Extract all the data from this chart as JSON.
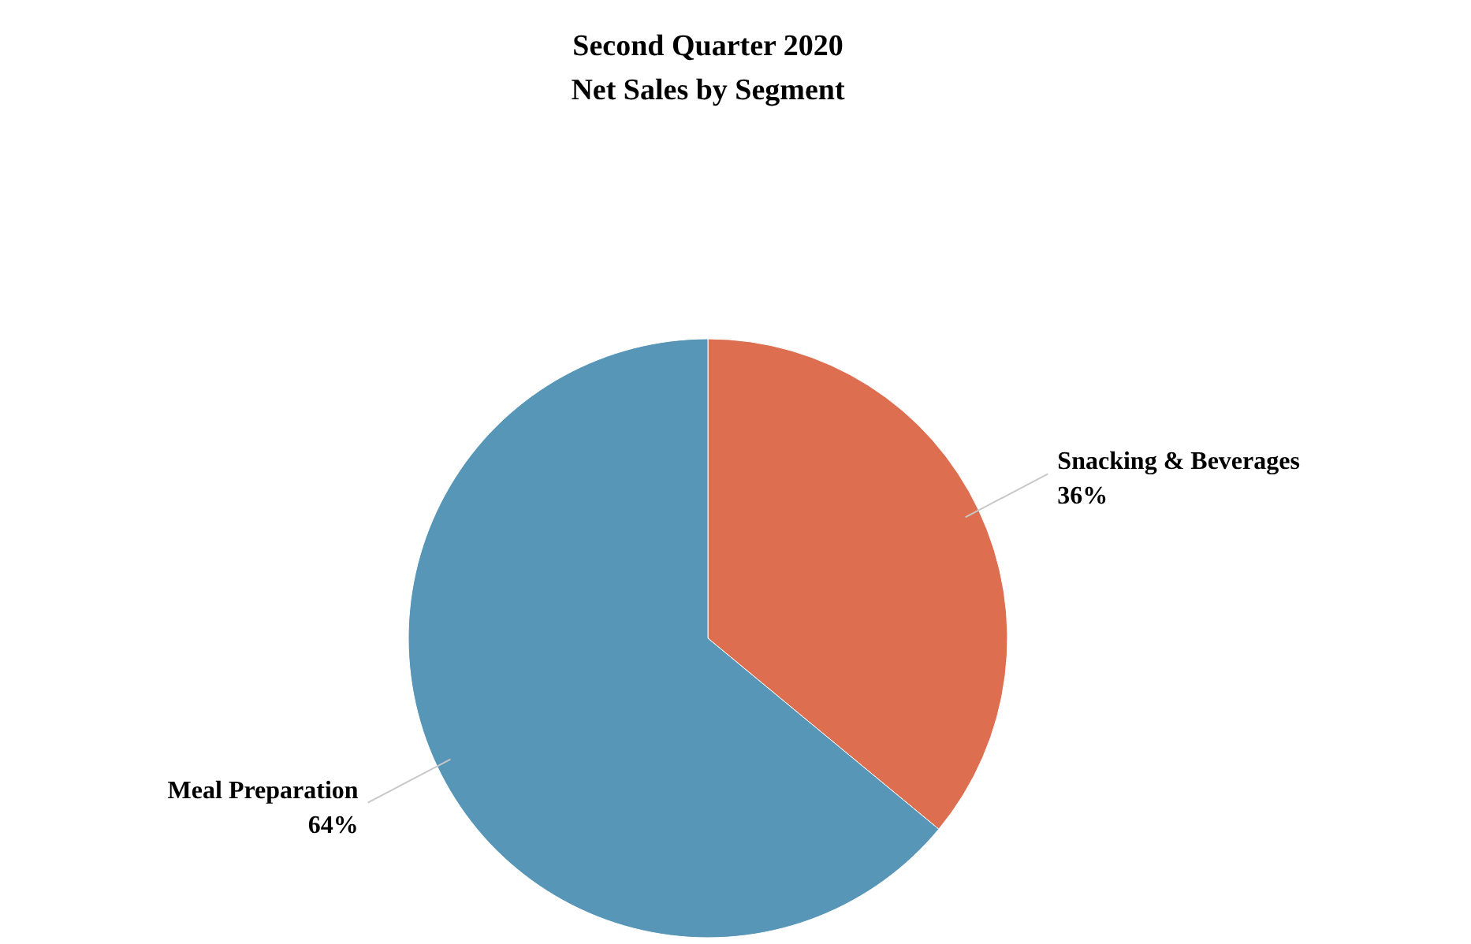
{
  "chart_data": {
    "type": "pie",
    "title": "Second Quarter 2020\nNet Sales by Segment",
    "categories": [
      "Snacking & Beverages",
      "Meal Preparation"
    ],
    "values": [
      36,
      64
    ],
    "value_labels": [
      "36%",
      "64%"
    ],
    "colors": [
      "#dd6e50",
      "#5796b6"
    ]
  }
}
